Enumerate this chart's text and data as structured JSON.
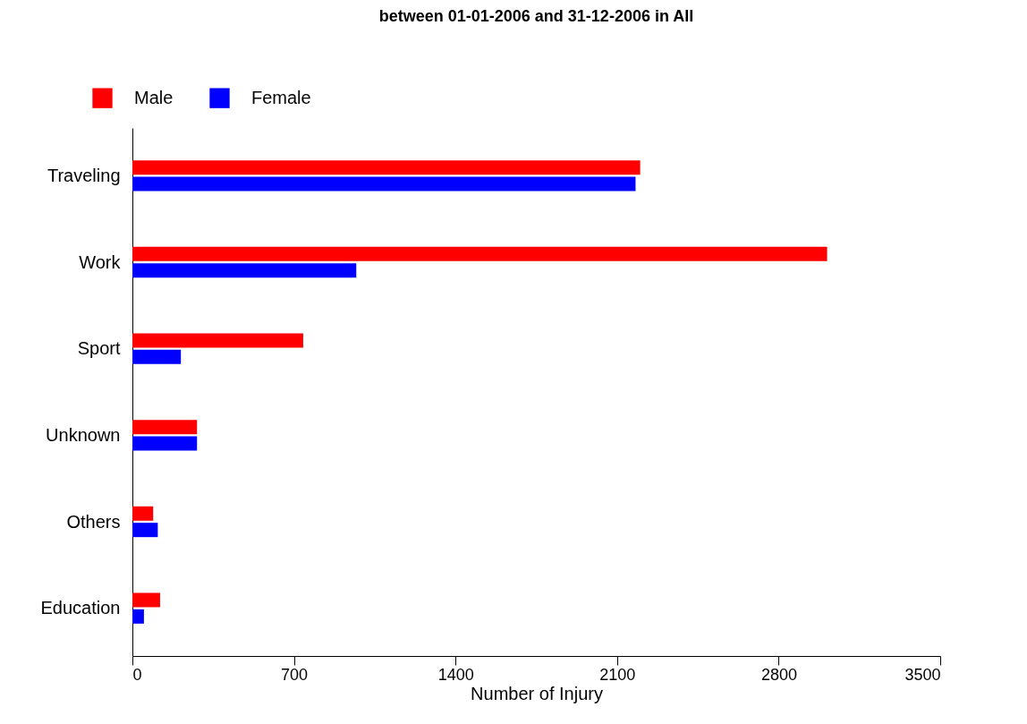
{
  "chart_data": {
    "type": "bar",
    "orientation": "horizontal",
    "title": "between 01-01-2006 and 31-12-2006 in All",
    "xlabel": "Number of Injury",
    "categories": [
      "Traveling",
      "Work",
      "Sport",
      "Unknown",
      "Others",
      "Education"
    ],
    "series": [
      {
        "name": "Male",
        "color": "#ff0000",
        "values": [
          2200,
          3010,
          740,
          280,
          90,
          120
        ]
      },
      {
        "name": "Female",
        "color": "#0000ff",
        "values": [
          2180,
          970,
          210,
          280,
          110,
          50
        ]
      }
    ],
    "xlim": [
      0,
      3500
    ],
    "xticks": [
      0,
      700,
      1400,
      2100,
      2800,
      3500
    ],
    "grid": false,
    "legend": "top left"
  }
}
